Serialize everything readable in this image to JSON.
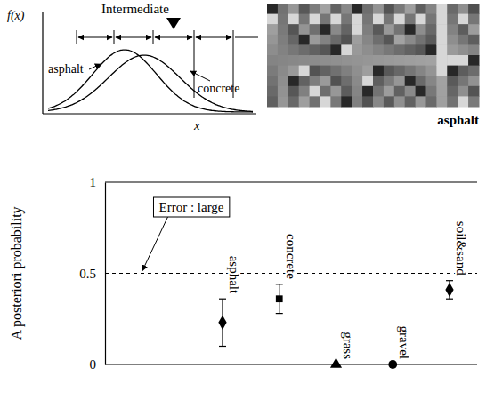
{
  "figure": {
    "distribution": {
      "y_label": "f(x)",
      "x_label": "x",
      "curves": [
        "asphalt",
        "concrete"
      ],
      "annotation": "Intermediate"
    },
    "texture": {
      "label": "asphalt"
    }
  },
  "chart_data": {
    "type": "scatter",
    "y_label": "A posteriori probability",
    "ylim": [
      0,
      1
    ],
    "yticks": [
      0,
      0.5,
      1
    ],
    "grid": true,
    "tick_labels": "y",
    "color": "#000000",
    "annotations": [
      "Error : large"
    ],
    "series": [
      {
        "name": "asphalt",
        "marker": "diamond",
        "values": [
          0.23
        ],
        "errors": [
          0.13
        ]
      },
      {
        "name": "concrete",
        "marker": "square",
        "values": [
          0.36
        ],
        "errors": [
          0.08
        ]
      },
      {
        "name": "grass",
        "marker": "triangle",
        "values": [
          0
        ],
        "errors": [
          0
        ]
      },
      {
        "name": "gravel",
        "marker": "circle",
        "values": [
          0
        ],
        "errors": [
          0
        ]
      },
      {
        "name": "soil&sand",
        "marker": "diamond",
        "values": [
          0.41
        ],
        "errors": [
          0.05
        ]
      }
    ]
  }
}
